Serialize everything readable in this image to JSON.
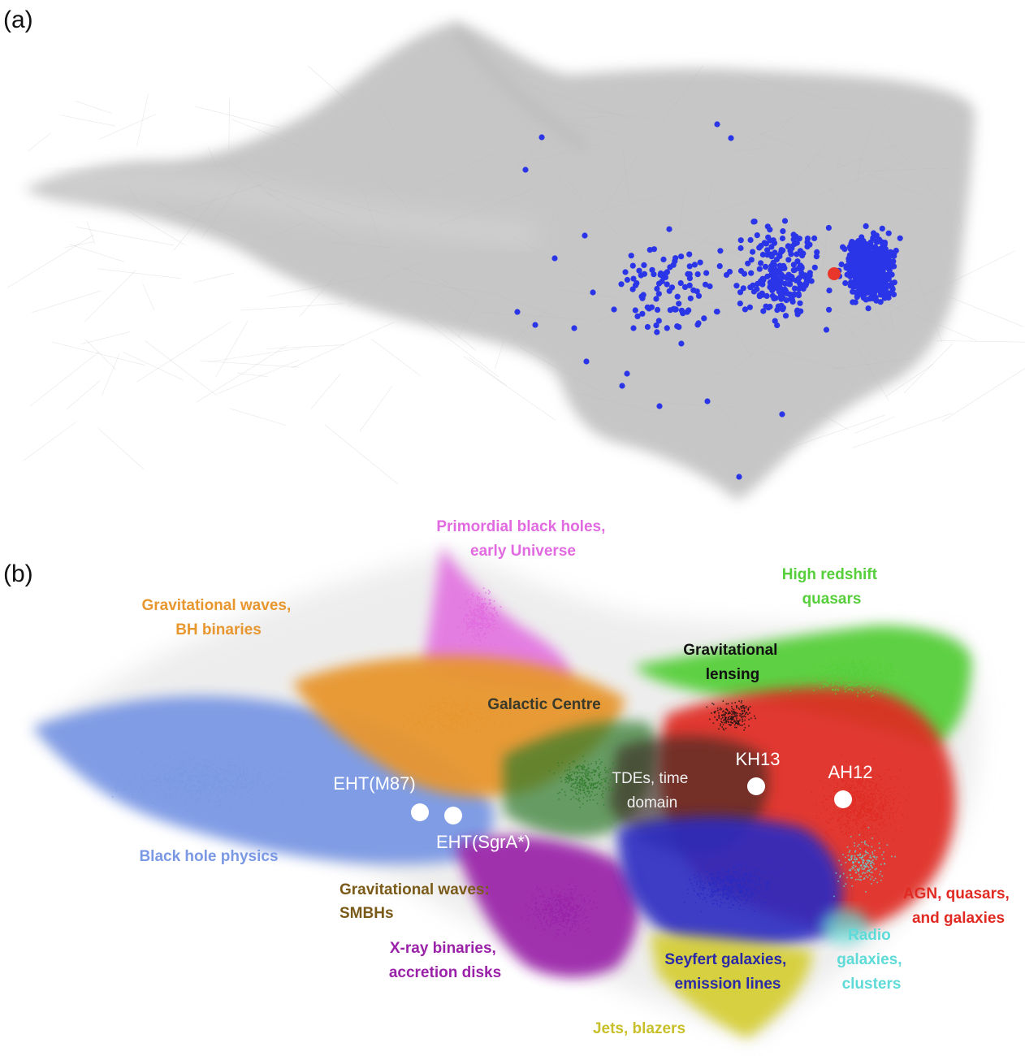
{
  "panel_a": {
    "label": "(a)"
  },
  "panel_b": {
    "label": "(b)"
  },
  "colors": {
    "network_grey": "#c6c6c6",
    "citing_node": "#2b35e8",
    "focus_node": "#e8372a",
    "bh_physics": "#7a98e4",
    "gw_binaries": "#e8962e",
    "primordial": "#e26ae0",
    "high_z_quasars": "#56cf3a",
    "lensing": "#111111",
    "galactic_centre": "#2f7a2a",
    "agn": "#e02a22",
    "seyfert": "#2a2ac2",
    "xray": "#9a22a8",
    "jets": "#d6cf38",
    "radio": "#5edbd8",
    "gw_smbh": "#7a5a18"
  },
  "clusters": [
    {
      "id": "primordial",
      "lines": [
        "Primordial black holes,",
        "early Universe"
      ],
      "color": "#e26ae0"
    },
    {
      "id": "gw_binaries",
      "lines": [
        "Gravitational waves,",
        "BH binaries"
      ],
      "color": "#e8962e"
    },
    {
      "id": "high_z",
      "lines": [
        "High redshift",
        "quasars"
      ],
      "color": "#56cf3a"
    },
    {
      "id": "lensing",
      "lines": [
        "Gravitational",
        "lensing"
      ],
      "color": "#111111"
    },
    {
      "id": "gc",
      "lines": [
        "Galactic Centre"
      ],
      "color": "#3a3a2a"
    },
    {
      "id": "bh_physics",
      "lines": [
        "Black hole physics"
      ],
      "color": "#7a98e4"
    },
    {
      "id": "gw_smbh",
      "lines": [
        "Gravitational waves:",
        "SMBHs"
      ],
      "color": "#7a5a18"
    },
    {
      "id": "xray",
      "lines": [
        "X-ray binaries,",
        "accretion disks"
      ],
      "color": "#9a22a8"
    },
    {
      "id": "seyfert",
      "lines": [
        "Seyfert galaxies,",
        "emission lines"
      ],
      "color": "#2a2aa8"
    },
    {
      "id": "agn",
      "lines": [
        "AGN, quasars,",
        "and galaxies"
      ],
      "color": "#e02a22"
    },
    {
      "id": "radio",
      "lines": [
        "Radio",
        "galaxies,",
        "clusters"
      ],
      "color": "#5edbd8"
    },
    {
      "id": "jets",
      "lines": [
        "Jets, blazers"
      ],
      "color": "#c8c02a"
    },
    {
      "id": "tde",
      "lines": [
        "TDEs, time",
        "domain"
      ],
      "color": "#eeeeee"
    }
  ],
  "papers": [
    {
      "id": "eht_m87",
      "label": "EHT(M87)"
    },
    {
      "id": "eht_sgra",
      "label": "EHT(SgrA*)"
    },
    {
      "id": "kh13",
      "label": "KH13"
    },
    {
      "id": "ah12",
      "label": "AH12"
    }
  ]
}
